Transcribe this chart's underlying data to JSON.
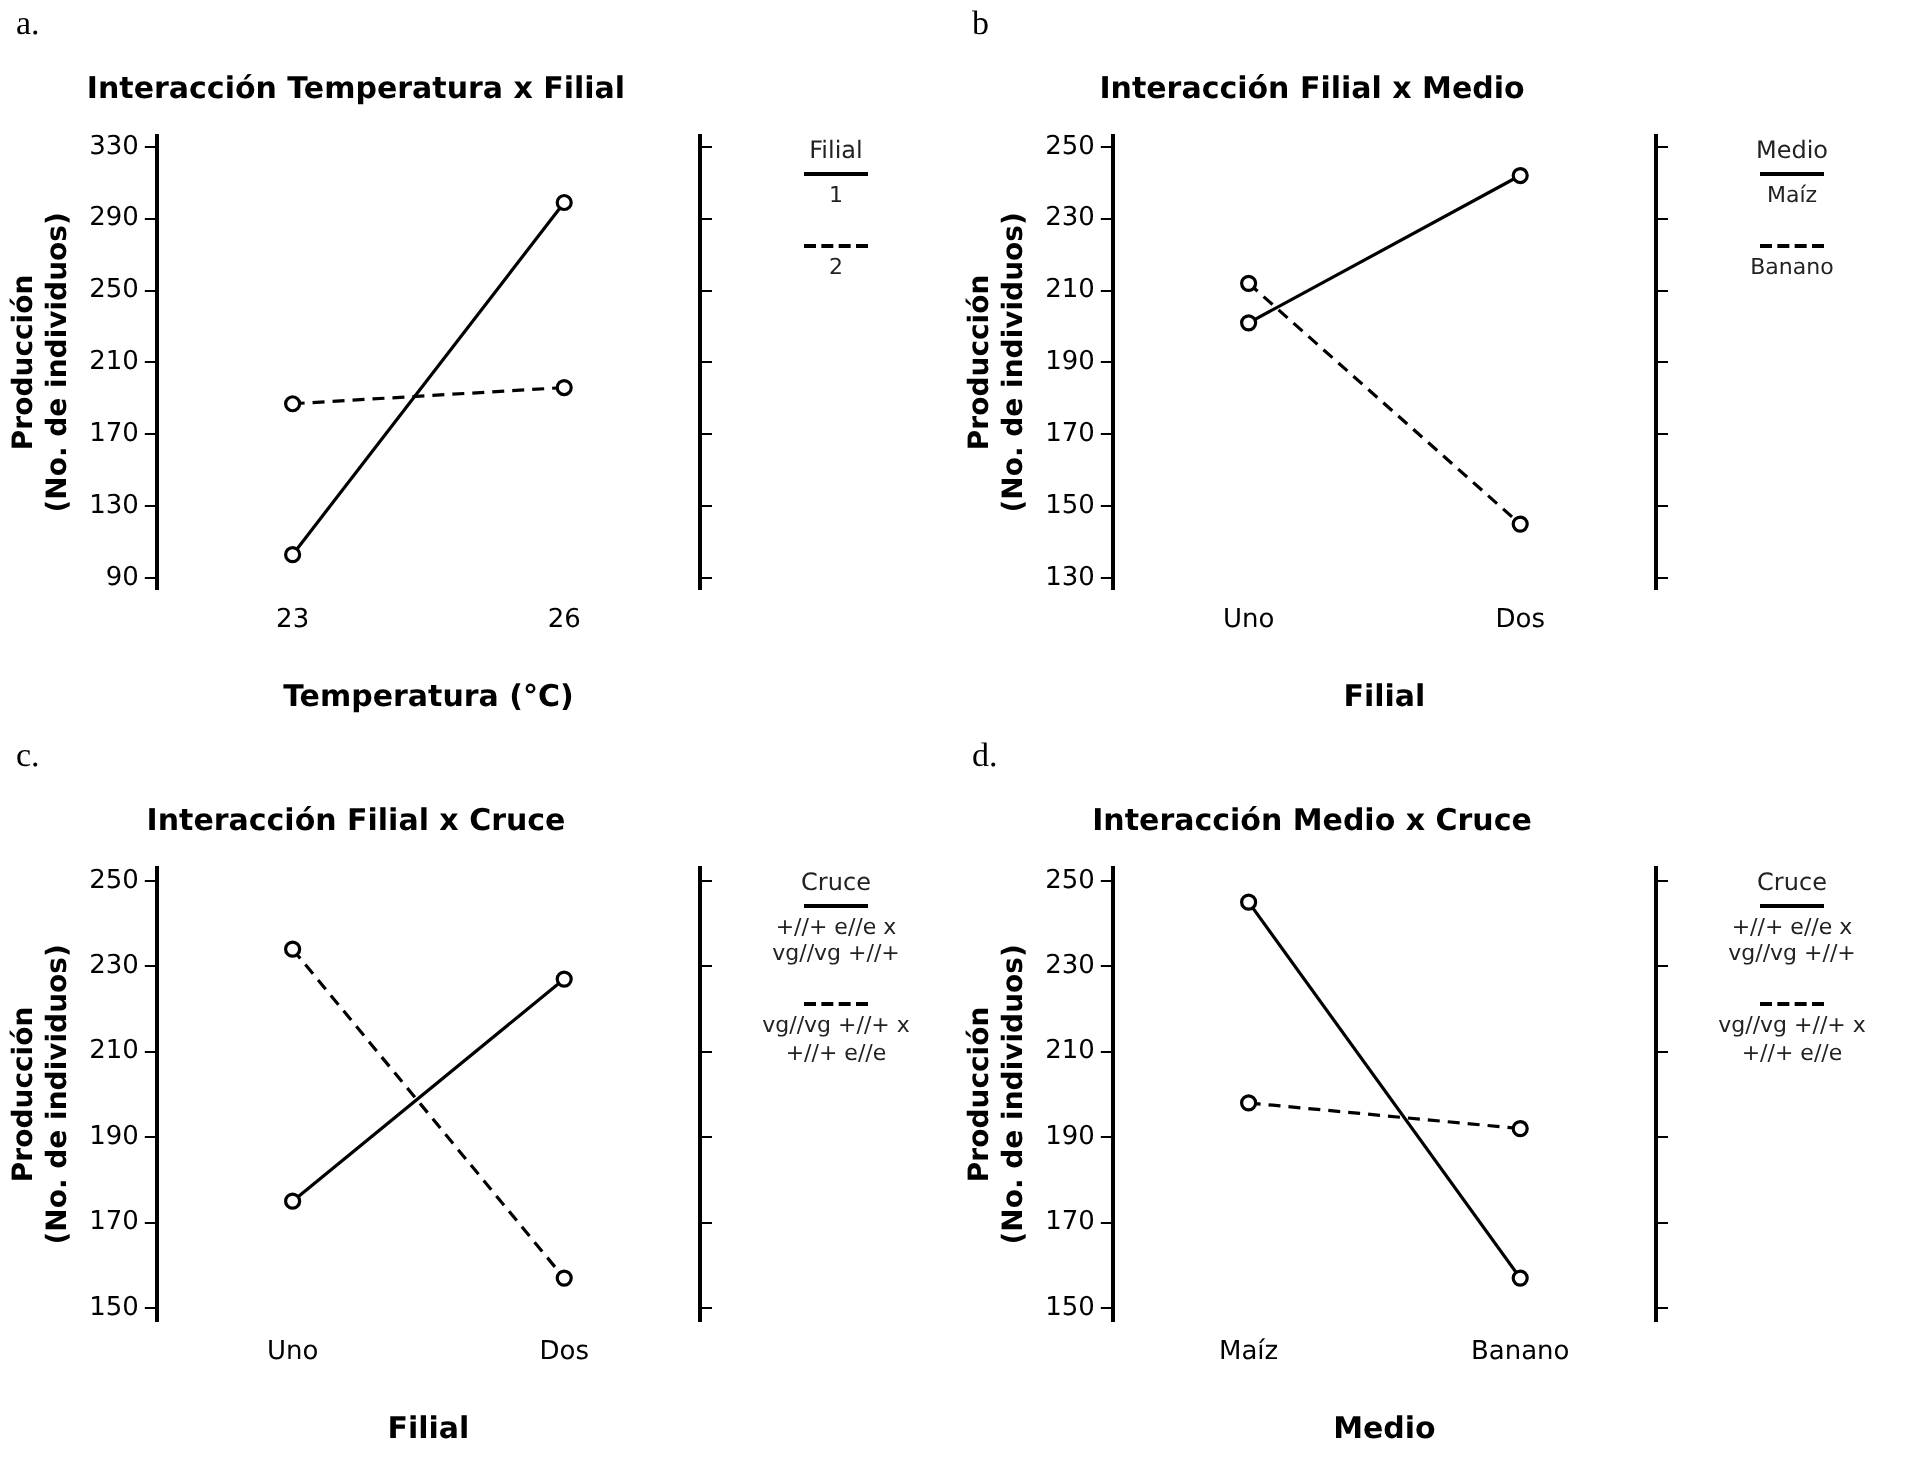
{
  "chart_data": [
    {
      "type": "line",
      "title": "Interacción Temperatura x Filial",
      "annotations": [
        "a."
      ],
      "xlabel": "Temperatura (°C)",
      "ylabel": "Producción\n(No. de individuos)",
      "legend_title": "Filial",
      "legend": "right",
      "grid": false,
      "marker": "circle",
      "categories": [
        "23",
        "26"
      ],
      "ylim": [
        84,
        336
      ],
      "yticks": [
        90,
        130,
        170,
        210,
        250,
        290,
        330
      ],
      "series": [
        {
          "name": "1",
          "color": "#000000",
          "line_style": "solid",
          "values": [
            103,
            299
          ]
        },
        {
          "name": "2",
          "color": "#000000",
          "line_style": "dashed",
          "values": [
            187,
            196
          ]
        }
      ]
    },
    {
      "type": "line",
      "title": "Interacción Filial x Medio",
      "annotations": [
        "b"
      ],
      "xlabel": "Filial",
      "ylabel": "Producción\n(No. de individuos)",
      "legend_title": "Medio",
      "legend": "right",
      "grid": false,
      "marker": "circle",
      "categories": [
        "Uno",
        "Dos"
      ],
      "ylim": [
        127,
        253
      ],
      "yticks": [
        130,
        150,
        170,
        190,
        210,
        230,
        250
      ],
      "series": [
        {
          "name": "Maíz",
          "color": "#000000",
          "line_style": "solid",
          "values": [
            201,
            242
          ]
        },
        {
          "name": "Banano",
          "color": "#000000",
          "line_style": "dashed",
          "values": [
            212,
            145
          ]
        }
      ]
    },
    {
      "type": "line",
      "title": "Interacción Filial x Cruce",
      "annotations": [
        "c."
      ],
      "xlabel": "Filial",
      "ylabel": "Producción\n(No. de individuos)",
      "legend_title": "Cruce",
      "legend": "right",
      "grid": false,
      "marker": "circle",
      "categories": [
        "Uno",
        "Dos"
      ],
      "ylim": [
        147,
        253
      ],
      "yticks": [
        150,
        170,
        190,
        210,
        230,
        250
      ],
      "series": [
        {
          "name": "+//+ e//e x\nvg//vg +//+",
          "color": "#000000",
          "line_style": "solid",
          "values": [
            175,
            227
          ]
        },
        {
          "name": "vg//vg +//+ x\n+//+ e//e",
          "color": "#000000",
          "line_style": "dashed",
          "values": [
            234,
            157
          ]
        }
      ]
    },
    {
      "type": "line",
      "title": "Interacción Medio x Cruce",
      "annotations": [
        "d."
      ],
      "xlabel": "Medio",
      "ylabel": "Producción\n(No. de individuos)",
      "legend_title": "Cruce",
      "legend": "right",
      "grid": false,
      "marker": "circle",
      "categories": [
        "Maíz",
        "Banano"
      ],
      "ylim": [
        147,
        253
      ],
      "yticks": [
        150,
        170,
        190,
        210,
        230,
        250
      ],
      "series": [
        {
          "name": "+//+ e//e x\nvg//vg +//+",
          "color": "#000000",
          "line_style": "solid",
          "values": [
            245,
            157
          ]
        },
        {
          "name": "vg//vg +//+ x\n+//+ e//e",
          "color": "#000000",
          "line_style": "dashed",
          "values": [
            198,
            192
          ]
        }
      ]
    }
  ]
}
